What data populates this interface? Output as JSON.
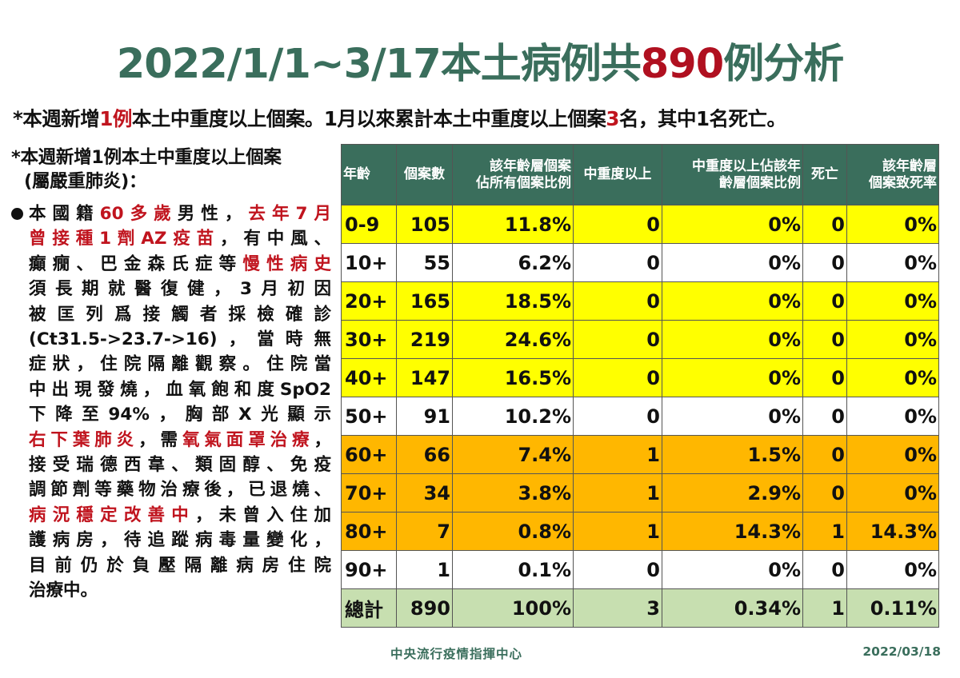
{
  "title": {
    "prefix": "2022/1/1~3/17本土病例共",
    "count": "890",
    "suffix": "例分析"
  },
  "summary": {
    "p1": "*本週新增",
    "p2": "1例",
    "p3": "本土中重度以上個案。1月以來累計本土中重度以上個案",
    "p4": "3",
    "p5": "名，其中1名死亡。"
  },
  "case_note": {
    "heading_line1": "*本週新增1例本土中重度以上個案",
    "heading_line2": "(屬嚴重肺炎)：",
    "lines": [
      [
        {
          "t": "本國籍",
          "red": false
        },
        {
          "t": "60多歲",
          "red": true
        },
        {
          "t": "男性，",
          "red": false
        },
        {
          "t": "去年7月",
          "red": true
        }
      ],
      [
        {
          "t": "曾接種1劑AZ疫苗",
          "red": true
        },
        {
          "t": "，有中風、",
          "red": false
        }
      ],
      [
        {
          "t": "癲癇、巴金森氏症等",
          "red": false
        },
        {
          "t": "慢性病史",
          "red": true
        }
      ],
      [
        {
          "t": "須長期就醫復健，3月初因",
          "red": false
        }
      ],
      [
        {
          "t": "被匡列爲接觸者採檢確診",
          "red": false
        }
      ],
      [
        {
          "t": "(Ct31.5->23.7->16)，當時無",
          "red": false
        }
      ],
      [
        {
          "t": "症狀，住院隔離觀察。住院當",
          "red": false
        }
      ],
      [
        {
          "t": "中出現發燒，血氧飽和度SpO2",
          "red": false
        }
      ],
      [
        {
          "t": "下降至94%，胸部X光顯示",
          "red": false
        }
      ],
      [
        {
          "t": "右下葉肺炎",
          "red": true
        },
        {
          "t": "，需",
          "red": false
        },
        {
          "t": "氧氣面罩治療",
          "red": true
        },
        {
          "t": "，",
          "red": false
        }
      ],
      [
        {
          "t": "接受瑞德西韋、類固醇、免疫",
          "red": false
        }
      ],
      [
        {
          "t": "調節劑等藥物治療後，已退燒、",
          "red": false
        }
      ],
      [
        {
          "t": "病況穩定改善中",
          "red": true
        },
        {
          "t": "，未曾入住加",
          "red": false
        }
      ],
      [
        {
          "t": "護病房，待追蹤病毒量變化，",
          "red": false
        }
      ],
      [
        {
          "t": "目前仍於負壓隔離病房住院",
          "red": false
        }
      ],
      [
        {
          "t": "治療中。",
          "red": false
        }
      ]
    ]
  },
  "table": {
    "headers": [
      [
        "年齡"
      ],
      [
        "個案數"
      ],
      [
        "該年齡層個案",
        "佔所有個案比例"
      ],
      [
        "中重度以上"
      ],
      [
        "中重度以上佔該年",
        "齡層個案比例"
      ],
      [
        "死亡"
      ],
      [
        "該年齡層",
        "個案致死率"
      ]
    ],
    "rows": [
      {
        "age": "0-9",
        "cases": "105",
        "share": "11.8%",
        "severe": "0",
        "severe_pct": "0%",
        "deaths": "0",
        "cfr": "0%",
        "color": "yellow"
      },
      {
        "age": "10+",
        "cases": "55",
        "share": "6.2%",
        "severe": "0",
        "severe_pct": "0%",
        "deaths": "0",
        "cfr": "0%",
        "color": "white"
      },
      {
        "age": "20+",
        "cases": "165",
        "share": "18.5%",
        "severe": "0",
        "severe_pct": "0%",
        "deaths": "0",
        "cfr": "0%",
        "color": "yellow"
      },
      {
        "age": "30+",
        "cases": "219",
        "share": "24.6%",
        "severe": "0",
        "severe_pct": "0%",
        "deaths": "0",
        "cfr": "0%",
        "color": "yellow"
      },
      {
        "age": "40+",
        "cases": "147",
        "share": "16.5%",
        "severe": "0",
        "severe_pct": "0%",
        "deaths": "0",
        "cfr": "0%",
        "color": "yellow"
      },
      {
        "age": "50+",
        "cases": "91",
        "share": "10.2%",
        "severe": "0",
        "severe_pct": "0%",
        "deaths": "0",
        "cfr": "0%",
        "color": "white"
      },
      {
        "age": "60+",
        "cases": "66",
        "share": "7.4%",
        "severe": "1",
        "severe_pct": "1.5%",
        "deaths": "0",
        "cfr": "0%",
        "color": "orange"
      },
      {
        "age": "70+",
        "cases": "34",
        "share": "3.8%",
        "severe": "1",
        "severe_pct": "2.9%",
        "deaths": "0",
        "cfr": "0%",
        "color": "orange"
      },
      {
        "age": "80+",
        "cases": "7",
        "share": "0.8%",
        "severe": "1",
        "severe_pct": "14.3%",
        "deaths": "1",
        "cfr": "14.3%",
        "color": "orange"
      },
      {
        "age": "90+",
        "cases": "1",
        "share": "0.1%",
        "severe": "0",
        "severe_pct": "0%",
        "deaths": "0",
        "cfr": "0%",
        "color": "white"
      },
      {
        "age": "總計",
        "cases": "890",
        "share": "100%",
        "severe": "3",
        "severe_pct": "0.34%",
        "deaths": "1",
        "cfr": "0.11%",
        "color": "total"
      }
    ]
  },
  "colors": {
    "header": "#3a6e5c",
    "accent_red": "#c0141e",
    "yellow": "#ffff00",
    "orange": "#ffb700",
    "total": "#c7dfb0"
  },
  "footer": {
    "org": "中央流行疫情指揮中心",
    "date": "2022/03/18"
  }
}
